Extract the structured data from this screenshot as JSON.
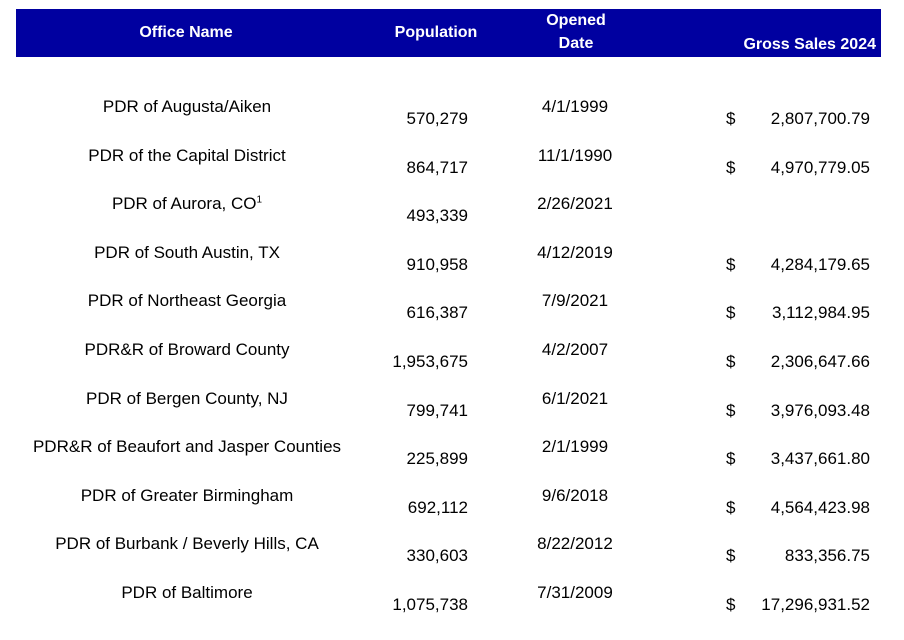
{
  "headers": {
    "office_name": "Office Name",
    "population": "Population",
    "opened_line1": "Opened",
    "opened_line2": "Date",
    "gross_sales": "Gross Sales 2024"
  },
  "rows": [
    {
      "name": "PDR of Augusta/Aiken",
      "sup": "",
      "population": "570,279",
      "opened": "4/1/1999",
      "currency": "$",
      "sales": "2,807,700.79"
    },
    {
      "name": "PDR of the Capital District",
      "sup": "",
      "population": "864,717",
      "opened": "11/1/1990",
      "currency": "$",
      "sales": "4,970,779.05"
    },
    {
      "name": "PDR of Aurora, CO",
      "sup": "1",
      "population": "493,339",
      "opened": "2/26/2021",
      "currency": "",
      "sales": ""
    },
    {
      "name": "PDR of South Austin, TX",
      "sup": "",
      "population": "910,958",
      "opened": "4/12/2019",
      "currency": "$",
      "sales": "4,284,179.65"
    },
    {
      "name": "PDR of Northeast Georgia",
      "sup": "",
      "population": "616,387",
      "opened": "7/9/2021",
      "currency": "$",
      "sales": "3,112,984.95"
    },
    {
      "name": "PDR&R of Broward County",
      "sup": "",
      "population": "1,953,675",
      "opened": "4/2/2007",
      "currency": "$",
      "sales": "2,306,647.66"
    },
    {
      "name": "PDR of Bergen County, NJ",
      "sup": "",
      "population": "799,741",
      "opened": "6/1/2021",
      "currency": "$",
      "sales": "3,976,093.48"
    },
    {
      "name": "PDR&R of Beaufort and Jasper Counties",
      "sup": "",
      "population": "225,899",
      "opened": "2/1/1999",
      "currency": "$",
      "sales": "3,437,661.80"
    },
    {
      "name": "PDR of Greater Birmingham",
      "sup": "",
      "population": "692,112",
      "opened": "9/6/2018",
      "currency": "$",
      "sales": "4,564,423.98"
    },
    {
      "name": "PDR of Burbank / Beverly Hills, CA",
      "sup": "",
      "population": "330,603",
      "opened": "8/22/2012",
      "currency": "$",
      "sales": "833,356.75"
    },
    {
      "name": "PDR of Baltimore",
      "sup": "",
      "population": "1,075,738",
      "opened": "7/31/2009",
      "currency": "$",
      "sales": "17,296,931.52"
    }
  ],
  "colors": {
    "header_bg": "#0000a0",
    "header_text": "#ffffff"
  }
}
